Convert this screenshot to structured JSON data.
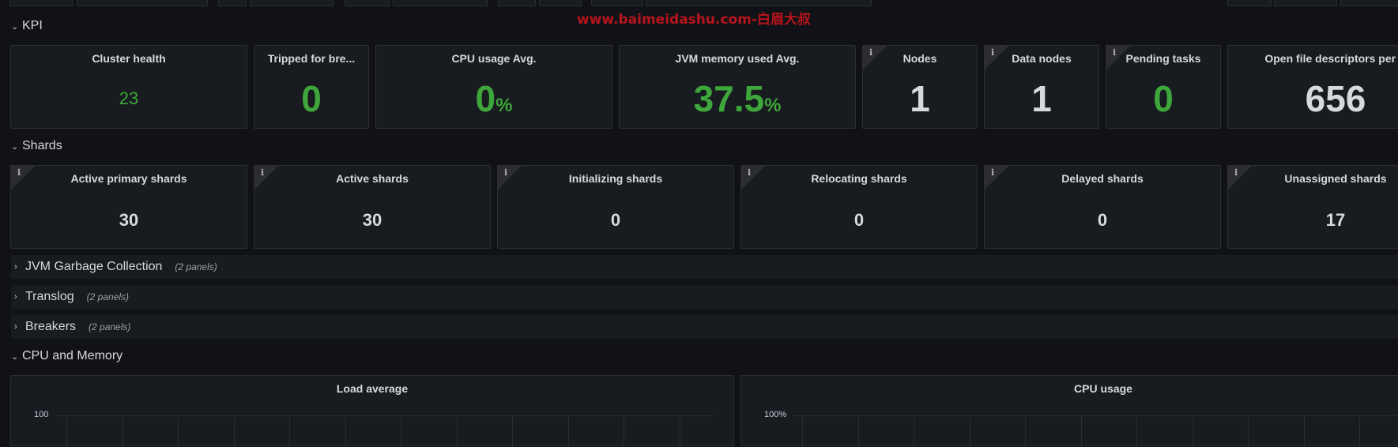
{
  "watermark": "www.baimeidashu.com-白眉大叔",
  "rows": {
    "kpi": {
      "chevron": "⌄",
      "title": "KPI"
    },
    "shards": {
      "chevron": "⌄",
      "title": "Shards"
    },
    "jvm_gc": {
      "chevron": "›",
      "title": "JVM Garbage Collection",
      "count": "(2 panels)"
    },
    "translog": {
      "chevron": "›",
      "title": "Translog",
      "count": "(2 panels)"
    },
    "breakers": {
      "chevron": "›",
      "title": "Breakers",
      "count": "(2 panels)"
    },
    "cpu_mem": {
      "chevron": "⌄",
      "title": "CPU and Memory"
    }
  },
  "kpi_panels": {
    "cluster_health": {
      "title": "Cluster health",
      "value": "23",
      "color": "#3ea63a"
    },
    "tripped": {
      "title": "Tripped for bre...",
      "value": "0",
      "color": "#3ea63a"
    },
    "cpu_avg": {
      "title": "CPU usage Avg.",
      "value": "0",
      "unit": "%",
      "color": "#3ea63a"
    },
    "jvm_mem": {
      "title": "JVM memory used Avg.",
      "value": "37.5",
      "unit": "%",
      "color": "#3ea63a"
    },
    "nodes": {
      "title": "Nodes",
      "value": "1",
      "info": "i"
    },
    "data_nodes": {
      "title": "Data nodes",
      "value": "1",
      "info": "i"
    },
    "pending_tasks": {
      "title": "Pending tasks",
      "value": "0",
      "info": "i",
      "color": "#3ea63a"
    },
    "open_fd": {
      "title": "Open file descriptors per cl",
      "value": "656"
    }
  },
  "shard_panels": [
    {
      "title": "Active primary shards",
      "value": "30",
      "info": "i"
    },
    {
      "title": "Active shards",
      "value": "30",
      "info": "i"
    },
    {
      "title": "Initializing shards",
      "value": "0",
      "info": "i"
    },
    {
      "title": "Relocating shards",
      "value": "0",
      "info": "i"
    },
    {
      "title": "Delayed shards",
      "value": "0",
      "info": "i"
    },
    {
      "title": "Unassigned shards",
      "value": "17",
      "info": "i"
    }
  ],
  "graphs": {
    "load_avg": {
      "title": "Load average",
      "y_top_label": "100"
    },
    "cpu_usage": {
      "title": "CPU usage",
      "y_top_label": "100%"
    }
  },
  "colors": {
    "background": "#111217",
    "panel": "#181b1f",
    "green": "#3ea63a",
    "text": "#d8d9da"
  }
}
